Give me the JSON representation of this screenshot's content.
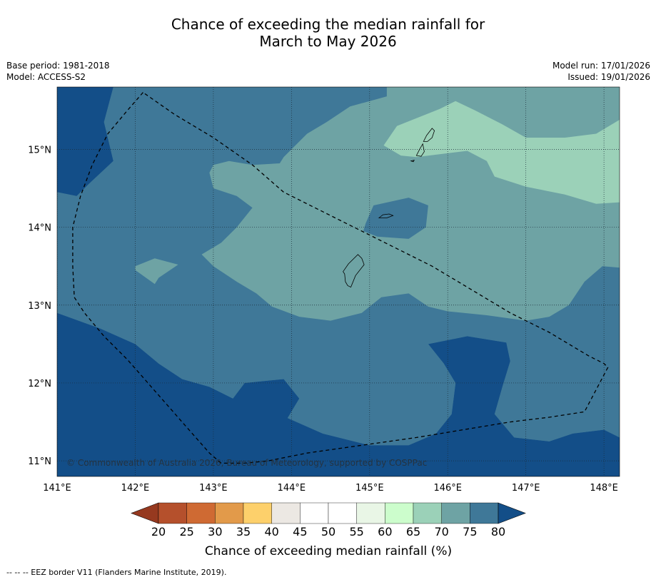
{
  "title_line1": "Chance of exceeding the median rainfall for",
  "title_line2": "March to May 2026",
  "base_period": "Base period: 1981-2018",
  "model": "Model: ACCESS-S2",
  "model_run": "Model run: 17/01/2026",
  "issued": "Issued: 19/01/2026",
  "copyright": "© Commonwealth of Australia 2026, Bureau of Meteorology, supported by COSPPac",
  "footer_note": "--  --  -- EEZ border V11 (Flanders Marine Institute, 2019).",
  "map": {
    "lon_range": [
      141,
      148.2
    ],
    "lat_range": [
      10.8,
      15.8
    ],
    "lon_ticks": [
      141,
      142,
      143,
      144,
      145,
      146,
      147,
      148
    ],
    "lon_tick_labels": [
      "141°E",
      "142°E",
      "143°E",
      "144°E",
      "145°E",
      "146°E",
      "147°E",
      "148°E"
    ],
    "lat_ticks": [
      11,
      12,
      13,
      14,
      15
    ],
    "lat_tick_labels": [
      "11°N",
      "12°N",
      "13°N",
      "14°N",
      "15°N"
    ],
    "gridlines": true,
    "regions": [
      {
        "name": "region-60-70",
        "category": "65-70",
        "points": [
          [
            145.18,
            15.05
          ],
          [
            145.35,
            15.3
          ],
          [
            145.9,
            15.52
          ],
          [
            146.1,
            15.62
          ],
          [
            146.35,
            15.5
          ],
          [
            146.7,
            15.32
          ],
          [
            147.0,
            15.15
          ],
          [
            147.5,
            15.15
          ],
          [
            147.9,
            15.2
          ],
          [
            148.2,
            15.38
          ],
          [
            148.2,
            14.32
          ],
          [
            147.9,
            14.3
          ],
          [
            147.5,
            14.42
          ],
          [
            147.0,
            14.52
          ],
          [
            146.6,
            14.65
          ],
          [
            146.5,
            14.85
          ],
          [
            146.25,
            14.98
          ],
          [
            145.6,
            14.9
          ],
          [
            145.4,
            14.92
          ]
        ]
      },
      {
        "name": "region-70-75-small-west",
        "category": "70-75",
        "points": [
          [
            142.0,
            13.5
          ],
          [
            142.25,
            13.6
          ],
          [
            142.55,
            13.52
          ],
          [
            142.3,
            13.35
          ],
          [
            142.25,
            13.27
          ],
          [
            142.0,
            13.45
          ]
        ]
      },
      {
        "name": "region-75-80-pocket",
        "category": "75-80",
        "points": [
          [
            144.95,
            14.05
          ],
          [
            145.05,
            14.28
          ],
          [
            145.5,
            14.38
          ],
          [
            145.75,
            14.28
          ],
          [
            145.72,
            14.0
          ],
          [
            145.5,
            13.85
          ],
          [
            145.1,
            13.88
          ],
          [
            144.92,
            13.95
          ]
        ]
      },
      {
        "name": "region-80-west",
        "category": "80+",
        "points": [
          [
            141.0,
            15.8
          ],
          [
            141.72,
            15.8
          ],
          [
            141.6,
            15.35
          ],
          [
            141.72,
            14.85
          ],
          [
            141.4,
            14.55
          ],
          [
            141.25,
            14.4
          ],
          [
            141.0,
            14.45
          ]
        ]
      },
      {
        "name": "region-80-east",
        "category": "80+",
        "points": [
          [
            145.75,
            12.5
          ],
          [
            146.25,
            12.6
          ],
          [
            146.75,
            12.52
          ],
          [
            146.8,
            12.28
          ],
          [
            146.7,
            11.95
          ],
          [
            146.6,
            11.6
          ],
          [
            146.85,
            11.3
          ],
          [
            147.3,
            11.25
          ],
          [
            147.6,
            11.35
          ],
          [
            148.0,
            11.4
          ],
          [
            148.2,
            11.3
          ],
          [
            148.2,
            10.8
          ],
          [
            141.0,
            10.8
          ],
          [
            141.0,
            12.9
          ],
          [
            141.55,
            12.7
          ],
          [
            142.0,
            12.5
          ],
          [
            142.3,
            12.25
          ],
          [
            142.6,
            12.05
          ],
          [
            142.95,
            11.95
          ],
          [
            143.25,
            11.8
          ],
          [
            143.4,
            12.0
          ],
          [
            143.9,
            12.05
          ],
          [
            144.1,
            11.8
          ],
          [
            143.95,
            11.55
          ],
          [
            144.4,
            11.35
          ],
          [
            145.0,
            11.2
          ],
          [
            145.5,
            11.2
          ],
          [
            145.85,
            11.35
          ],
          [
            146.05,
            11.6
          ],
          [
            146.1,
            12.0
          ],
          [
            145.95,
            12.25
          ]
        ]
      }
    ],
    "islands": [
      {
        "name": "guam",
        "points": [
          [
            144.66,
            13.43
          ],
          [
            144.73,
            13.53
          ],
          [
            144.85,
            13.65
          ],
          [
            144.9,
            13.6
          ],
          [
            144.93,
            13.52
          ],
          [
            144.82,
            13.38
          ],
          [
            144.78,
            13.28
          ],
          [
            144.76,
            13.23
          ],
          [
            144.72,
            13.25
          ],
          [
            144.69,
            13.3
          ],
          [
            144.68,
            13.4
          ]
        ]
      },
      {
        "name": "rota",
        "points": [
          [
            145.12,
            14.12
          ],
          [
            145.17,
            14.16
          ],
          [
            145.25,
            14.17
          ],
          [
            145.3,
            14.15
          ],
          [
            145.22,
            14.12
          ],
          [
            145.17,
            14.12
          ]
        ]
      },
      {
        "name": "tinian",
        "points": [
          [
            145.6,
            14.92
          ],
          [
            145.64,
            15.0
          ],
          [
            145.68,
            15.07
          ],
          [
            145.7,
            14.97
          ],
          [
            145.66,
            14.91
          ]
        ]
      },
      {
        "name": "saipan",
        "points": [
          [
            145.69,
            15.1
          ],
          [
            145.73,
            15.18
          ],
          [
            145.8,
            15.27
          ],
          [
            145.83,
            15.24
          ],
          [
            145.8,
            15.15
          ],
          [
            145.74,
            15.1
          ]
        ]
      },
      {
        "name": "aguijan",
        "points": [
          [
            145.53,
            14.85
          ],
          [
            145.57,
            14.86
          ],
          [
            145.56,
            14.84
          ]
        ]
      }
    ],
    "eez": [
      [
        142.1,
        15.73
      ],
      [
        141.9,
        15.5
      ],
      [
        141.65,
        15.2
      ],
      [
        141.45,
        14.8
      ],
      [
        141.3,
        14.4
      ],
      [
        141.2,
        14.0
      ],
      [
        141.2,
        13.5
      ],
      [
        141.22,
        13.1
      ],
      [
        141.35,
        12.9
      ],
      [
        141.6,
        12.6
      ],
      [
        141.9,
        12.3
      ],
      [
        142.25,
        11.9
      ],
      [
        142.6,
        11.5
      ],
      [
        142.95,
        11.1
      ],
      [
        143.1,
        10.97
      ],
      [
        143.4,
        10.97
      ],
      [
        143.7,
        11.0
      ],
      [
        144.2,
        11.1
      ],
      [
        144.9,
        11.2
      ],
      [
        145.6,
        11.3
      ],
      [
        146.2,
        11.4
      ],
      [
        146.8,
        11.5
      ],
      [
        147.3,
        11.56
      ],
      [
        147.75,
        11.63
      ],
      [
        148.05,
        12.2
      ],
      [
        148.0,
        12.25
      ],
      [
        147.8,
        12.35
      ],
      [
        147.3,
        12.65
      ],
      [
        146.8,
        12.9
      ],
      [
        146.3,
        13.2
      ],
      [
        145.8,
        13.5
      ],
      [
        145.3,
        13.75
      ],
      [
        144.8,
        14.0
      ],
      [
        144.3,
        14.25
      ],
      [
        143.9,
        14.45
      ],
      [
        143.5,
        14.8
      ],
      [
        143.0,
        15.15
      ],
      [
        142.5,
        15.45
      ],
      [
        142.1,
        15.73
      ]
    ],
    "field_base": "70-75",
    "field_base_region_75": [
      [
        141.0,
        14.45
      ],
      [
        141.25,
        14.4
      ],
      [
        141.4,
        14.55
      ],
      [
        141.72,
        14.85
      ],
      [
        141.6,
        15.35
      ],
      [
        141.72,
        15.8
      ],
      [
        145.22,
        15.8
      ],
      [
        145.22,
        15.68
      ],
      [
        144.75,
        15.55
      ],
      [
        144.45,
        15.35
      ],
      [
        144.2,
        15.2
      ],
      [
        143.9,
        14.9
      ],
      [
        143.85,
        14.82
      ],
      [
        143.5,
        14.8
      ],
      [
        143.2,
        14.85
      ],
      [
        143.0,
        14.8
      ],
      [
        142.95,
        14.7
      ],
      [
        143.0,
        14.5
      ],
      [
        143.3,
        14.4
      ],
      [
        143.5,
        14.25
      ],
      [
        143.3,
        14.0
      ],
      [
        143.1,
        13.8
      ],
      [
        142.85,
        13.65
      ],
      [
        143.0,
        13.5
      ],
      [
        143.3,
        13.3
      ],
      [
        143.55,
        13.15
      ],
      [
        143.75,
        12.98
      ],
      [
        144.1,
        12.85
      ],
      [
        144.5,
        12.8
      ],
      [
        144.9,
        12.9
      ],
      [
        145.15,
        13.1
      ],
      [
        145.5,
        13.15
      ],
      [
        145.75,
        12.98
      ],
      [
        146.0,
        12.92
      ],
      [
        146.5,
        12.87
      ],
      [
        147.0,
        12.8
      ],
      [
        147.3,
        12.85
      ],
      [
        147.55,
        13.0
      ],
      [
        147.75,
        13.3
      ],
      [
        147.98,
        13.5
      ],
      [
        148.2,
        13.48
      ],
      [
        148.2,
        11.3
      ],
      [
        148.0,
        11.4
      ],
      [
        147.6,
        11.35
      ],
      [
        147.3,
        11.25
      ],
      [
        146.85,
        11.3
      ],
      [
        146.6,
        11.6
      ],
      [
        146.7,
        11.95
      ],
      [
        146.8,
        12.28
      ],
      [
        146.75,
        12.52
      ],
      [
        146.25,
        12.6
      ],
      [
        145.75,
        12.5
      ],
      [
        145.95,
        12.25
      ],
      [
        146.1,
        12.0
      ],
      [
        146.05,
        11.6
      ],
      [
        145.85,
        11.35
      ],
      [
        145.5,
        11.2
      ],
      [
        145.0,
        11.2
      ],
      [
        144.4,
        11.35
      ],
      [
        143.95,
        11.55
      ],
      [
        144.1,
        11.8
      ],
      [
        143.9,
        12.05
      ],
      [
        143.4,
        12.0
      ],
      [
        143.25,
        11.8
      ],
      [
        142.95,
        11.95
      ],
      [
        142.6,
        12.05
      ],
      [
        142.3,
        12.25
      ],
      [
        142.0,
        12.5
      ],
      [
        141.55,
        12.7
      ],
      [
        141.0,
        12.9
      ]
    ]
  },
  "colorbar": {
    "title": "Chance of exceeding median rainfall (%)",
    "boundaries": [
      20,
      25,
      30,
      35,
      40,
      45,
      50,
      55,
      60,
      65,
      70,
      75,
      80
    ],
    "tick_labels": [
      "20",
      "25",
      "30",
      "35",
      "40",
      "45",
      "50",
      "55",
      "60",
      "65",
      "70",
      "75",
      "80"
    ],
    "colors": [
      "#b5502c",
      "#cf6a33",
      "#e29a4a",
      "#fdd06b",
      "#ece8e3",
      "#ffffff",
      "#ffffff",
      "#e9f6e6",
      "#ccfdcc",
      "#9bd1b8",
      "#6ea3a4",
      "#3f7898"
    ],
    "under_color": "#96391f",
    "over_color": "#134e88"
  }
}
